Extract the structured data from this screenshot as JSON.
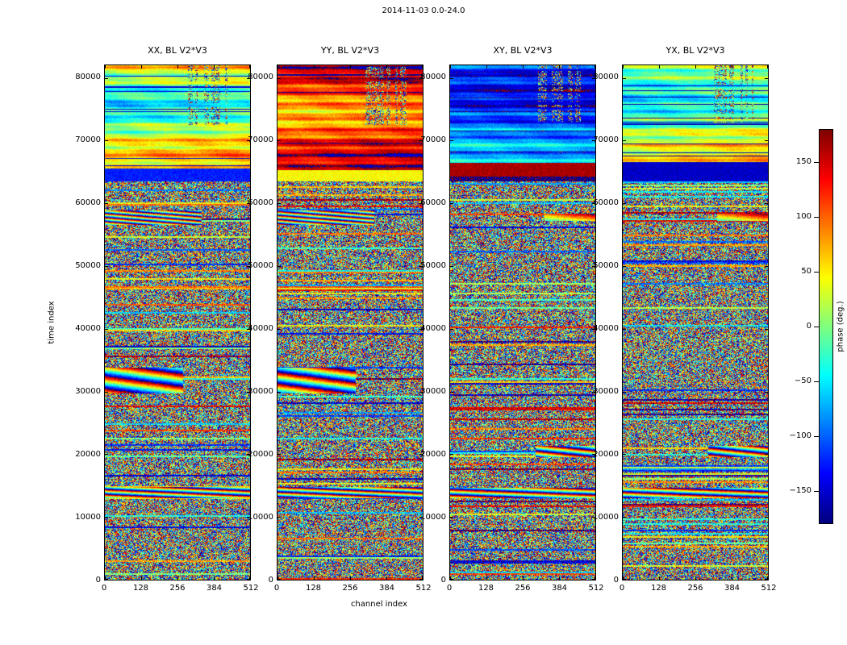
{
  "chart_data": {
    "type": "heatmap",
    "title": "2014-11-03 0.0-24.0",
    "xlabel": "channel index",
    "ylabel": "time index",
    "xlim": [
      0,
      512
    ],
    "ylim": [
      0,
      82000
    ],
    "x_tick_values": [
      0,
      128,
      256,
      384,
      512
    ],
    "x_tick_labels": [
      "0",
      "128",
      "256",
      "384",
      "512"
    ],
    "y_tick_values": [
      0,
      10000,
      20000,
      30000,
      40000,
      50000,
      60000,
      70000,
      80000
    ],
    "y_tick_labels": [
      "0",
      "10000",
      "20000",
      "30000",
      "40000",
      "50000",
      "60000",
      "70000",
      "80000"
    ],
    "colormap": "jet",
    "colorbar": {
      "label": "phase (deg.)",
      "tick_values": [
        150,
        100,
        50,
        0,
        -50,
        -100,
        -150
      ],
      "tick_labels": [
        "150",
        "100",
        "50",
        "0",
        "−50",
        "−100",
        "−150"
      ],
      "vmin": -180,
      "vmax": 180
    },
    "description": "Waterfall plots of interferometric visibility phase (deg) vs channel index and time index for baseline V2*V3, four polarization products. Smooth coherent phase bands above time ~63500; wrapped uniform phase noise with horizontal banding and occasional smooth fringe patches below.",
    "panels": [
      {
        "title": "XX, BL V2*V3",
        "render": {
          "seed": 11,
          "coherent": {
            "t_start": 63500,
            "base": 15,
            "amp": 55,
            "period1": 2600,
            "period2": 820,
            "tilt": 0.05,
            "chwave": 12,
            "dash_value": -150,
            "dash_prob": 0.07,
            "bands": [
              {
                "t0": 63500,
                "t1": 65600,
                "value": -125
              }
            ]
          },
          "noise": {
            "row_coherent_prob": 0.15,
            "row_jitter": 70
          },
          "speckle_patch": {
            "t_min": 72500,
            "ch_min": 290,
            "ch_max": 455
          },
          "fringe_zones": [
            {
              "t0": 56600,
              "t1": 58900,
              "c0": 0,
              "c1": 340,
              "kc": 2.0,
              "kt": 55,
              "phi": -120
            },
            {
              "t0": 29700,
              "t1": 33900,
              "c0": 0,
              "c1": 275,
              "kc": 1.1,
              "kt": 18,
              "phi": 40
            },
            {
              "t0": 13100,
              "t1": 14900,
              "c0": 0,
              "c1": 512,
              "kc": 0.9,
              "kt": 45,
              "phi": -60
            }
          ]
        }
      },
      {
        "title": "YY, BL V2*V3",
        "render": {
          "seed": 23,
          "coherent": {
            "t_start": 63500,
            "base": 115,
            "amp": 40,
            "period1": 2300,
            "period2": 700,
            "tilt": 0.04,
            "chwave": 10,
            "dash_value": -170,
            "dash_prob": 0.06,
            "bands": [
              {
                "t0": 63500,
                "t1": 65300,
                "value": 45
              }
            ]
          },
          "noise": {
            "row_coherent_prob": 0.15,
            "row_jitter": 70
          },
          "speckle_patch": {
            "t_min": 72500,
            "ch_min": 290,
            "ch_max": 455
          },
          "fringe_zones": [
            {
              "t0": 56600,
              "t1": 58900,
              "c0": 0,
              "c1": 340,
              "kc": 2.0,
              "kt": 55,
              "phi": 60
            },
            {
              "t0": 29700,
              "t1": 33900,
              "c0": 0,
              "c1": 275,
              "kc": 1.2,
              "kt": 20,
              "phi": -140
            },
            {
              "t0": 13100,
              "t1": 14900,
              "c0": 0,
              "c1": 512,
              "kc": 0.9,
              "kt": 45,
              "phi": 120
            }
          ]
        }
      },
      {
        "title": "XY, BL V2*V3",
        "render": {
          "seed": 37,
          "coherent": {
            "t_start": 63500,
            "base": -105,
            "amp": 35,
            "period1": 3000,
            "period2": 900,
            "tilt": -0.03,
            "chwave": 8,
            "dash_value": -170,
            "dash_prob": 0.05,
            "bands": [
              {
                "t0": 64300,
                "t1": 66500,
                "value": 165
              },
              {
                "t0": 63500,
                "t1": 64300,
                "value": -172
              }
            ]
          },
          "noise": {
            "row_coherent_prob": 0.15,
            "row_jitter": 70
          },
          "speckle_patch": {
            "t_min": 72500,
            "ch_min": 310,
            "ch_max": 460
          },
          "fringe_zones": [
            {
              "t0": 57200,
              "t1": 58400,
              "c0": 330,
              "c1": 512,
              "kc": 0.5,
              "kt": 12,
              "phi": 150
            },
            {
              "t0": 19600,
              "t1": 21400,
              "c0": 300,
              "c1": 512,
              "kc": 1.6,
              "kt": 35,
              "phi": 80
            },
            {
              "t0": 13100,
              "t1": 14700,
              "c0": 0,
              "c1": 512,
              "kc": 0.7,
              "kt": 40,
              "phi": 0
            }
          ]
        }
      },
      {
        "title": "YX, BL V2*V3",
        "render": {
          "seed": 53,
          "coherent": {
            "t_start": 63500,
            "base": 5,
            "amp": 45,
            "period1": 2800,
            "period2": 760,
            "tilt": 0.05,
            "chwave": 10,
            "dash_value": -160,
            "dash_prob": 0.05,
            "bands": [
              {
                "t0": 63500,
                "t1": 66600,
                "value": -155
              }
            ]
          },
          "noise": {
            "row_coherent_prob": 0.15,
            "row_jitter": 70
          },
          "speckle_patch": {
            "t_min": 73000,
            "ch_min": 320,
            "ch_max": 460
          },
          "fringe_zones": [
            {
              "t0": 57200,
              "t1": 58400,
              "c0": 330,
              "c1": 512,
              "kc": 0.5,
              "kt": 12,
              "phi": 150
            },
            {
              "t0": 19600,
              "t1": 21400,
              "c0": 300,
              "c1": 512,
              "kc": 1.6,
              "kt": 35,
              "phi": -100
            },
            {
              "t0": 13100,
              "t1": 14700,
              "c0": 0,
              "c1": 512,
              "kc": 0.7,
              "kt": 40,
              "phi": 170
            }
          ]
        }
      }
    ]
  }
}
